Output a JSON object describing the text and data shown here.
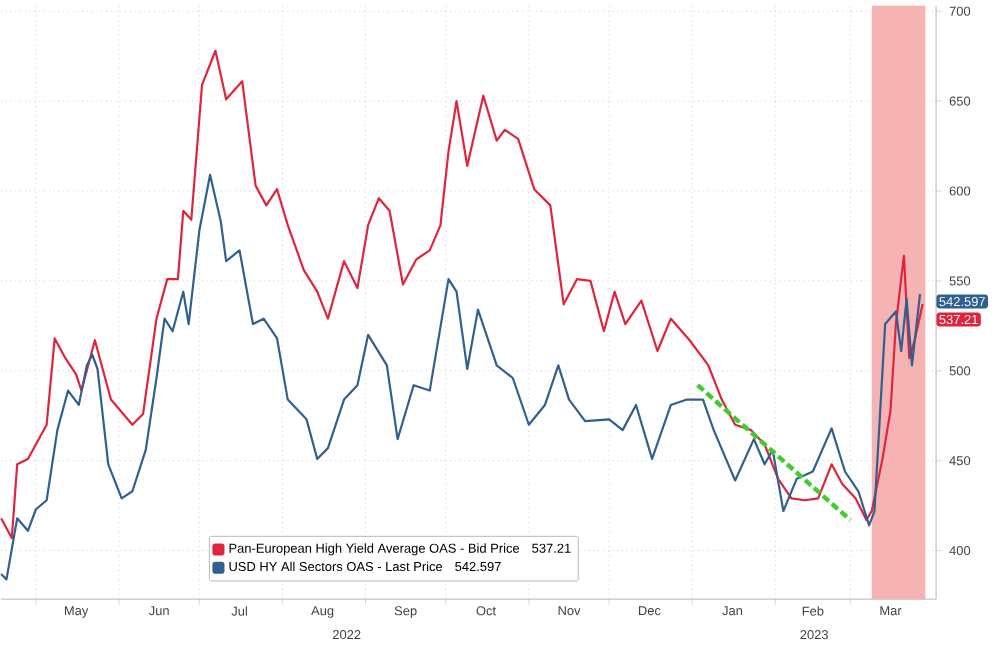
{
  "chart_data": {
    "type": "line",
    "xlim": [
      "2022-04-18",
      "2023-04-02"
    ],
    "ylim": [
      373,
      703
    ],
    "xticks": [
      {
        "value": "2022-05-01",
        "label": null
      },
      {
        "value": "2022-06-01",
        "label": null
      },
      {
        "value": "2022-07-01",
        "label": null
      },
      {
        "value": "2022-08-01",
        "label": null
      },
      {
        "value": "2022-09-01",
        "label": null
      },
      {
        "value": "2022-10-01",
        "label": null
      },
      {
        "value": "2022-11-01",
        "label": null
      },
      {
        "value": "2022-12-01",
        "label": null
      },
      {
        "value": "2023-01-01",
        "label": null
      },
      {
        "value": "2023-02-01",
        "label": null
      },
      {
        "value": "2023-03-01",
        "label": null
      },
      {
        "value": "2022-05-16",
        "label": "May"
      },
      {
        "value": "2022-06-16",
        "label": "Jun"
      },
      {
        "value": "2022-07-16",
        "label": "Jul"
      },
      {
        "value": "2022-08-16",
        "label": "Aug"
      },
      {
        "value": "2022-09-16",
        "label": "Sep"
      },
      {
        "value": "2022-10-16",
        "label": "Oct"
      },
      {
        "value": "2022-11-16",
        "label": "Nov"
      },
      {
        "value": "2022-12-16",
        "label": "Dec"
      },
      {
        "value": "2023-01-16",
        "label": "Jan"
      },
      {
        "value": "2023-02-15",
        "label": "Feb"
      },
      {
        "value": "2023-03-16",
        "label": "Mar"
      }
    ],
    "yticks": [
      400,
      450,
      500,
      550,
      600,
      650,
      700
    ],
    "grid": true,
    "legend": "bottom",
    "line_style": "solid",
    "annotations": [
      "2022",
      "2023"
    ],
    "bands": [
      {
        "axis": "x",
        "from": "2023-03-09",
        "to": "2023-03-29",
        "color": "#f5b3b3"
      }
    ],
    "series": [
      {
        "name": "Pan-European High Yield Average OAS - Bid Price",
        "color": "#e0243c",
        "x": [
          "2022-04-18",
          "2022-04-22",
          "2022-04-24",
          "2022-04-28",
          "2022-05-05",
          "2022-05-08",
          "2022-05-12",
          "2022-05-16",
          "2022-05-18",
          "2022-05-23",
          "2022-05-29",
          "2022-06-06",
          "2022-06-10",
          "2022-06-15",
          "2022-06-19",
          "2022-06-23",
          "2022-06-25",
          "2022-06-28",
          "2022-07-02",
          "2022-07-07",
          "2022-07-11",
          "2022-07-17",
          "2022-07-22",
          "2022-07-26",
          "2022-07-30",
          "2022-08-03",
          "2022-08-09",
          "2022-08-14",
          "2022-08-18",
          "2022-08-24",
          "2022-08-29",
          "2022-09-02",
          "2022-09-06",
          "2022-09-10",
          "2022-09-15",
          "2022-09-20",
          "2022-09-25",
          "2022-09-29",
          "2022-10-02",
          "2022-10-05",
          "2022-10-09",
          "2022-10-15",
          "2022-10-20",
          "2022-10-23",
          "2022-10-28",
          "2022-11-03",
          "2022-11-09",
          "2022-11-14",
          "2022-11-19",
          "2022-11-24",
          "2022-11-29",
          "2022-12-03",
          "2022-12-07",
          "2022-12-13",
          "2022-12-19",
          "2022-12-24",
          "2022-12-31",
          "2023-01-07",
          "2023-01-12",
          "2023-01-17",
          "2023-01-23",
          "2023-01-28",
          "2023-02-02",
          "2023-02-07",
          "2023-02-12",
          "2023-02-17",
          "2023-02-22",
          "2023-02-26",
          "2023-03-03",
          "2023-03-07",
          "2023-03-09",
          "2023-03-13",
          "2023-03-16",
          "2023-03-18",
          "2023-03-21",
          "2023-03-23",
          "2023-03-25",
          "2023-03-28"
        ],
        "values": [
          418,
          407,
          448,
          451,
          470,
          518,
          507,
          498,
          489,
          517,
          484,
          470,
          476,
          529,
          551,
          551,
          589,
          584,
          659,
          678,
          651,
          661,
          603,
          592,
          601,
          581,
          556,
          544,
          529,
          561,
          546,
          581,
          596,
          589,
          548,
          562,
          567,
          581,
          622,
          650,
          614,
          653,
          628,
          634,
          629,
          601,
          592,
          537,
          551,
          550,
          522,
          544,
          526,
          539,
          511,
          529,
          517,
          503,
          484,
          470,
          467,
          459,
          440,
          429,
          428,
          429,
          448,
          437,
          429,
          417,
          422,
          451,
          478,
          526,
          564,
          507,
          517,
          537.21
        ],
        "value_labels": [
          null,
          null,
          null,
          null,
          null,
          null,
          null,
          null,
          null,
          null,
          null,
          null,
          null,
          null,
          null,
          null,
          null,
          null,
          null,
          null,
          null,
          null,
          null,
          null,
          null,
          null,
          null,
          null,
          null,
          null,
          null,
          null,
          null,
          null,
          null,
          null,
          null,
          null,
          null,
          null,
          null,
          null,
          null,
          null,
          null,
          null,
          null,
          null,
          null,
          null,
          null,
          null,
          null,
          null,
          null,
          null,
          null,
          null,
          null,
          null,
          null,
          null,
          null,
          null,
          null,
          null,
          null,
          null,
          null,
          null,
          null,
          null,
          null,
          null,
          null,
          null,
          null,
          "537.21"
        ]
      },
      {
        "name": "USD HY All Sectors OAS - Last Price",
        "color": "#2f6090",
        "x": [
          "2022-04-18",
          "2022-04-20",
          "2022-04-24",
          "2022-04-28",
          "2022-05-01",
          "2022-05-05",
          "2022-05-09",
          "2022-05-13",
          "2022-05-17",
          "2022-05-20",
          "2022-05-22",
          "2022-05-24",
          "2022-05-28",
          "2022-06-02",
          "2022-06-06",
          "2022-06-11",
          "2022-06-15",
          "2022-06-18",
          "2022-06-21",
          "2022-06-25",
          "2022-06-27",
          "2022-07-01",
          "2022-07-05",
          "2022-07-09",
          "2022-07-11",
          "2022-07-16",
          "2022-07-21",
          "2022-07-25",
          "2022-07-30",
          "2022-08-03",
          "2022-08-10",
          "2022-08-14",
          "2022-08-18",
          "2022-08-24",
          "2022-08-29",
          "2022-09-02",
          "2022-09-09",
          "2022-09-13",
          "2022-09-19",
          "2022-09-25",
          "2022-10-02",
          "2022-10-05",
          "2022-10-09",
          "2022-10-13",
          "2022-10-20",
          "2022-10-26",
          "2022-11-01",
          "2022-11-07",
          "2022-11-12",
          "2022-11-16",
          "2022-11-22",
          "2022-12-01",
          "2022-12-06",
          "2022-12-11",
          "2022-12-17",
          "2022-12-24",
          "2022-12-30",
          "2023-01-05",
          "2023-01-09",
          "2023-01-17",
          "2023-01-24",
          "2023-01-28",
          "2023-01-31",
          "2023-02-04",
          "2023-02-09",
          "2023-02-15",
          "2023-02-22",
          "2023-02-27",
          "2023-03-04",
          "2023-03-08",
          "2023-03-10",
          "2023-03-14",
          "2023-03-18",
          "2023-03-20",
          "2023-03-22",
          "2023-03-24",
          "2023-03-27"
        ],
        "values": [
          387,
          384,
          418,
          411,
          423,
          428,
          467,
          489,
          481,
          503,
          509,
          501,
          448,
          429,
          433,
          456,
          496,
          529,
          522,
          544,
          526,
          578,
          609,
          583,
          561,
          567,
          526,
          529,
          518,
          484,
          473,
          451,
          457,
          484,
          492,
          520,
          503,
          462,
          492,
          489,
          551,
          544,
          501,
          534,
          503,
          496,
          470,
          481,
          503,
          484,
          472,
          473,
          467,
          481,
          451,
          481,
          484,
          484,
          467,
          439,
          462,
          448,
          456,
          422,
          440,
          444,
          468,
          444,
          433,
          414,
          422,
          526,
          533,
          511,
          540,
          503,
          542.597
        ],
        "value_labels": [
          null,
          null,
          null,
          null,
          null,
          null,
          null,
          null,
          null,
          null,
          null,
          null,
          null,
          null,
          null,
          null,
          null,
          null,
          null,
          null,
          null,
          null,
          null,
          null,
          null,
          null,
          null,
          null,
          null,
          null,
          null,
          null,
          null,
          null,
          null,
          null,
          null,
          null,
          null,
          null,
          null,
          null,
          null,
          null,
          null,
          null,
          null,
          null,
          null,
          null,
          null,
          null,
          null,
          null,
          null,
          null,
          null,
          null,
          null,
          null,
          null,
          null,
          null,
          null,
          null,
          null,
          null,
          null,
          null,
          null,
          null,
          null,
          null,
          null,
          null,
          null,
          "542.597"
        ]
      },
      {
        "type": "line",
        "color": "#3fcc2e",
        "line_style": "dashed",
        "x": [
          "2023-01-03",
          "2023-03-01"
        ],
        "values": [
          492,
          417
        ]
      }
    ]
  }
}
